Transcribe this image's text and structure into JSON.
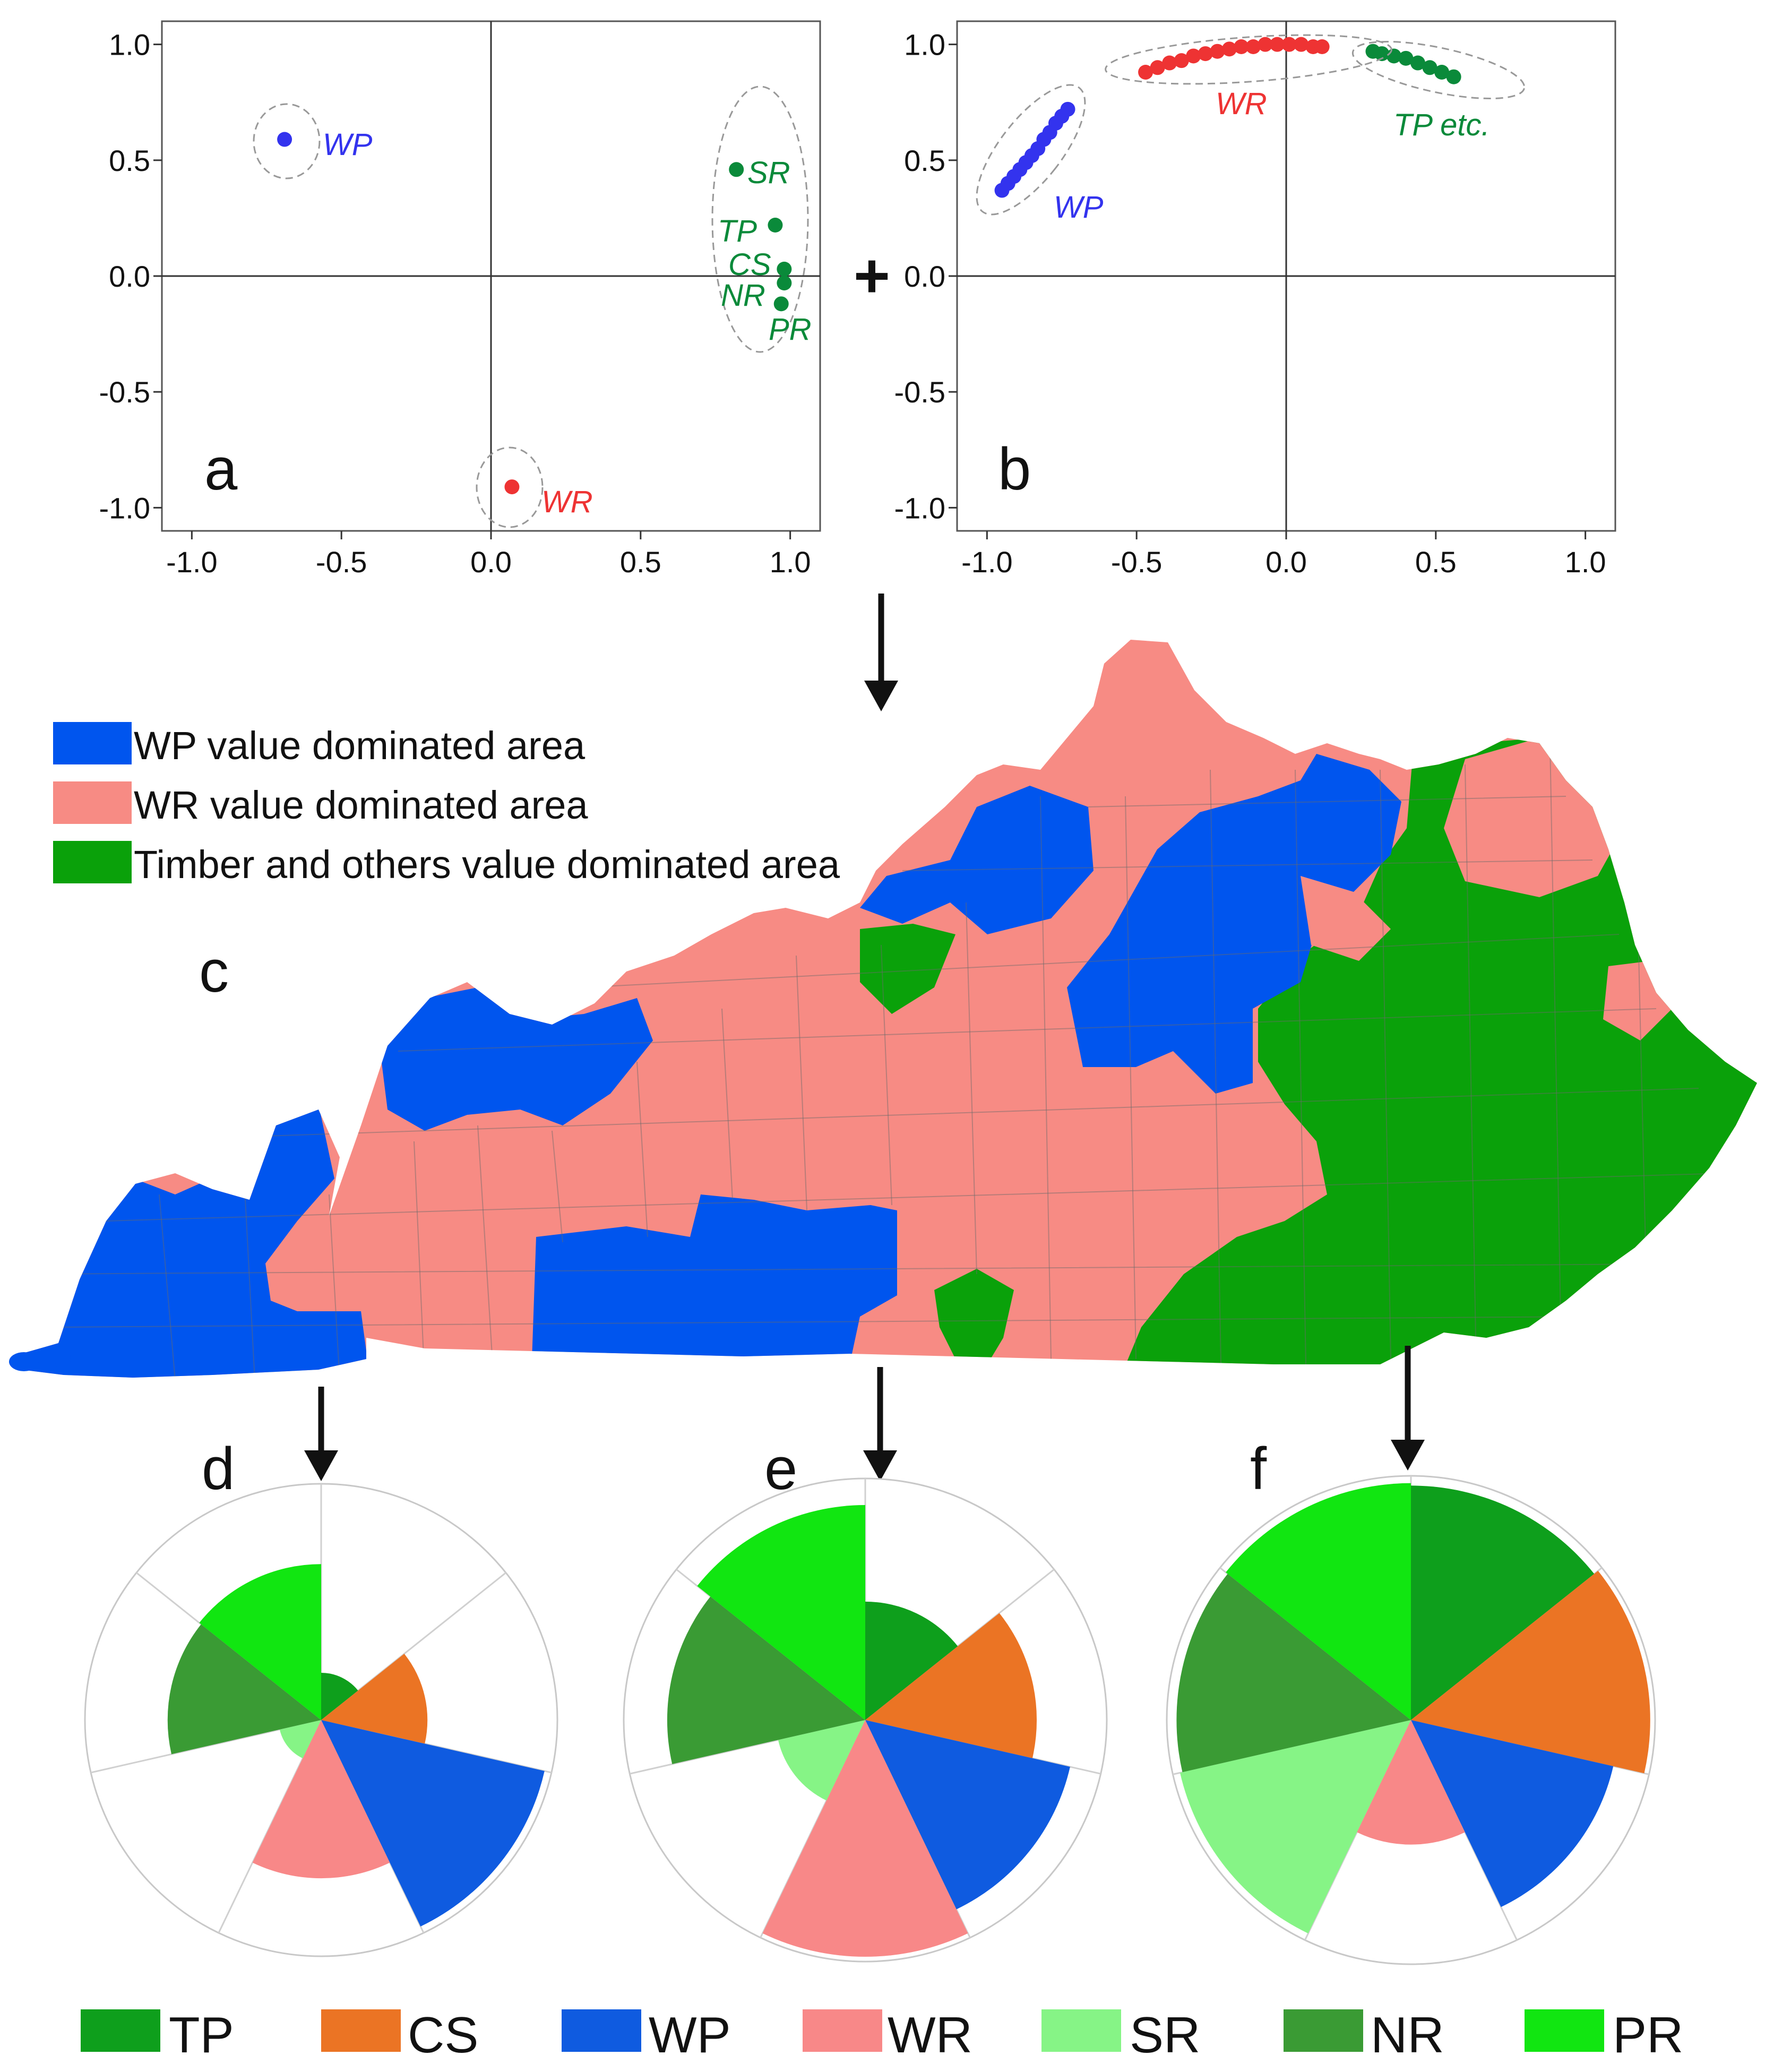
{
  "chart_data": [
    {
      "panel": "a",
      "type": "scatter",
      "xlim": [
        -1.1,
        1.1
      ],
      "ylim": [
        -1.1,
        1.1
      ],
      "x_ticks": [
        "-1.0",
        "-0.5",
        "0.0",
        "0.5",
        "1.0"
      ],
      "y_ticks": [
        "1.0",
        "0.5",
        "0.0",
        "-0.5",
        "-1.0"
      ],
      "x_tick_values": [
        -1.0,
        -0.5,
        0.0,
        0.5,
        1.0
      ],
      "y_tick_values": [
        1.0,
        0.5,
        0.0,
        -0.5,
        -1.0
      ],
      "points": [
        {
          "label": "WP",
          "x": -0.69,
          "y": 0.59,
          "color": "#3333ee"
        },
        {
          "label": "WR",
          "x": 0.07,
          "y": -0.91,
          "color": "#ee3333"
        },
        {
          "label": "SR",
          "x": 0.82,
          "y": 0.46,
          "color": "#0a8a3a"
        },
        {
          "label": "TP",
          "x": 0.95,
          "y": 0.22,
          "color": "#0a8a3a"
        },
        {
          "label": "CS",
          "x": 0.98,
          "y": 0.03,
          "color": "#0a8a3a"
        },
        {
          "label": "NR",
          "x": 0.98,
          "y": -0.03,
          "color": "#0a8a3a"
        },
        {
          "label": "PR",
          "x": 0.97,
          "y": -0.12,
          "color": "#0a8a3a"
        }
      ]
    },
    {
      "panel": "b",
      "type": "scatter",
      "xlim": [
        -1.1,
        1.1
      ],
      "ylim": [
        -1.1,
        1.1
      ],
      "x_ticks": [
        "-1.0",
        "-0.5",
        "0.0",
        "0.5",
        "1.0"
      ],
      "y_ticks": [
        "1.0",
        "0.5",
        "0.0",
        "-0.5",
        "-1.0"
      ],
      "x_tick_values": [
        -1.0,
        -0.5,
        0.0,
        0.5,
        1.0
      ],
      "y_tick_values": [
        1.0,
        0.5,
        0.0,
        -0.5,
        -1.0
      ],
      "clusters": [
        {
          "label": "WP",
          "color": "#3333ee",
          "x": [
            -0.95,
            -0.93,
            -0.91,
            -0.89,
            -0.87,
            -0.85,
            -0.83,
            -0.81,
            -0.79,
            -0.77,
            -0.75,
            -0.73
          ],
          "y": [
            0.37,
            0.4,
            0.43,
            0.46,
            0.49,
            0.52,
            0.55,
            0.59,
            0.62,
            0.66,
            0.69,
            0.72
          ]
        },
        {
          "label": "WR",
          "color": "#ee3333",
          "x": [
            -0.47,
            -0.43,
            -0.39,
            -0.35,
            -0.31,
            -0.27,
            -0.23,
            -0.19,
            -0.15,
            -0.11,
            -0.07,
            -0.03,
            0.01,
            0.05,
            0.09,
            0.12
          ],
          "y": [
            0.88,
            0.9,
            0.92,
            0.93,
            0.95,
            0.96,
            0.97,
            0.98,
            0.99,
            0.99,
            1.0,
            1.0,
            1.0,
            1.0,
            0.99,
            0.99
          ]
        },
        {
          "label": "TP etc.",
          "color": "#0a8a3a",
          "x": [
            0.29,
            0.32,
            0.36,
            0.4,
            0.44,
            0.48,
            0.52,
            0.56
          ],
          "y": [
            0.97,
            0.96,
            0.95,
            0.94,
            0.92,
            0.9,
            0.88,
            0.86
          ]
        }
      ]
    },
    {
      "panel": "d",
      "type": "pie",
      "max_value": 1.0,
      "categories": [
        "TP",
        "CS",
        "WP",
        "WR",
        "SR",
        "NR",
        "PR"
      ],
      "values": [
        0.2,
        0.45,
        0.97,
        0.67,
        0.18,
        0.65,
        0.66
      ]
    },
    {
      "panel": "e",
      "type": "pie",
      "max_value": 1.0,
      "categories": [
        "TP",
        "CS",
        "WP",
        "WR",
        "SR",
        "NR",
        "PR"
      ],
      "values": [
        0.49,
        0.71,
        0.87,
        0.98,
        0.37,
        0.82,
        0.89
      ]
    },
    {
      "panel": "f",
      "type": "pie",
      "max_value": 1.0,
      "categories": [
        "TP",
        "CS",
        "WP",
        "WR",
        "SR",
        "NR",
        "PR"
      ],
      "values": [
        0.96,
        0.98,
        0.85,
        0.51,
        0.97,
        0.96,
        0.97
      ]
    }
  ],
  "panel_letters": {
    "a": "a",
    "b": "b",
    "c": "c",
    "d": "d",
    "e": "e",
    "f": "f"
  },
  "combine_symbol": "+",
  "map_legend": [
    {
      "label": "WP value dominated area",
      "color": "#0055ee"
    },
    {
      "label": "WR value dominated area",
      "color": "#f78b84"
    },
    {
      "label": "Timber and others value dominated area",
      "color": "#0aa10a"
    }
  ],
  "bottom_legend": [
    {
      "label": "TP",
      "color": "#0e9f1c"
    },
    {
      "label": "CS",
      "color": "#eb7424"
    },
    {
      "label": "WP",
      "color": "#0f5be0"
    },
    {
      "label": "WR",
      "color": "#f88888"
    },
    {
      "label": "SR",
      "color": "#86f486"
    },
    {
      "label": "NR",
      "color": "#3a9b34"
    },
    {
      "label": "PR",
      "color": "#11e611"
    }
  ]
}
